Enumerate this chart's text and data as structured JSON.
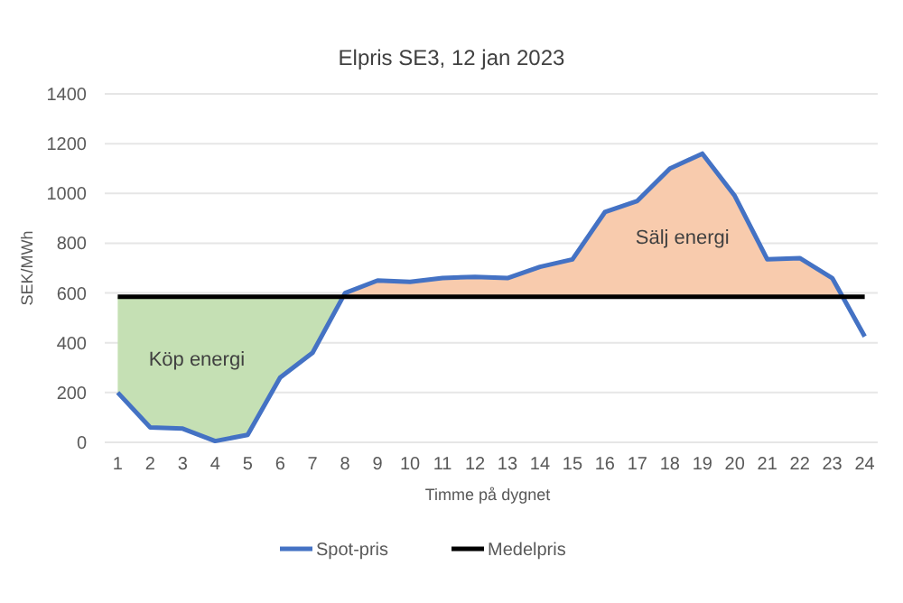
{
  "chart_data": {
    "type": "line",
    "title": "Elpris SE3, 12 jan 2023",
    "xlabel": "Timme på dygnet",
    "ylabel": "SEK/MWh",
    "x": [
      1,
      2,
      3,
      4,
      5,
      6,
      7,
      8,
      9,
      10,
      11,
      12,
      13,
      14,
      15,
      16,
      17,
      18,
      19,
      20,
      21,
      22,
      23,
      24
    ],
    "xlim": [
      0.6,
      24.4
    ],
    "xticks": [
      1,
      2,
      3,
      4,
      5,
      6,
      7,
      8,
      9,
      10,
      11,
      12,
      13,
      14,
      15,
      16,
      17,
      18,
      19,
      20,
      21,
      22,
      23,
      24
    ],
    "ylim": [
      0,
      1400
    ],
    "yticks": [
      0,
      200,
      400,
      600,
      800,
      1000,
      1200,
      1400
    ],
    "grid": "y",
    "legend": "bottom",
    "marker": "none",
    "line_style": "solid",
    "series": [
      {
        "type": "area",
        "color": "#c5e0b4",
        "x": [
          1,
          1,
          2,
          3,
          4,
          5,
          6,
          7,
          7.95
        ],
        "values": [
          585,
          200,
          60,
          55,
          5,
          30,
          260,
          360,
          585
        ]
      },
      {
        "type": "area",
        "color": "#f8cbad",
        "x": [
          7.95,
          8,
          9,
          10,
          11,
          12,
          13,
          14,
          15,
          16,
          17,
          18,
          19,
          20,
          21,
          22,
          23,
          23.3
        ],
        "values": [
          585,
          600,
          650,
          645,
          660,
          665,
          660,
          705,
          735,
          925,
          970,
          1100,
          1160,
          990,
          735,
          740,
          660,
          585
        ]
      },
      {
        "name": "Spot-pris",
        "color": "#4472c4",
        "values": [
          200,
          60,
          55,
          5,
          30,
          260,
          360,
          600,
          650,
          645,
          660,
          665,
          660,
          705,
          735,
          925,
          970,
          1100,
          1160,
          990,
          735,
          740,
          660,
          425
        ]
      },
      {
        "name": "Medelpris",
        "color": "#000000",
        "values": [
          585,
          585,
          585,
          585,
          585,
          585,
          585,
          585,
          585,
          585,
          585,
          585,
          585,
          585,
          585,
          585,
          585,
          585,
          585,
          585,
          585,
          585,
          585,
          585
        ]
      }
    ],
    "annotations": [
      "Köp energi",
      "Sälj energi"
    ]
  }
}
